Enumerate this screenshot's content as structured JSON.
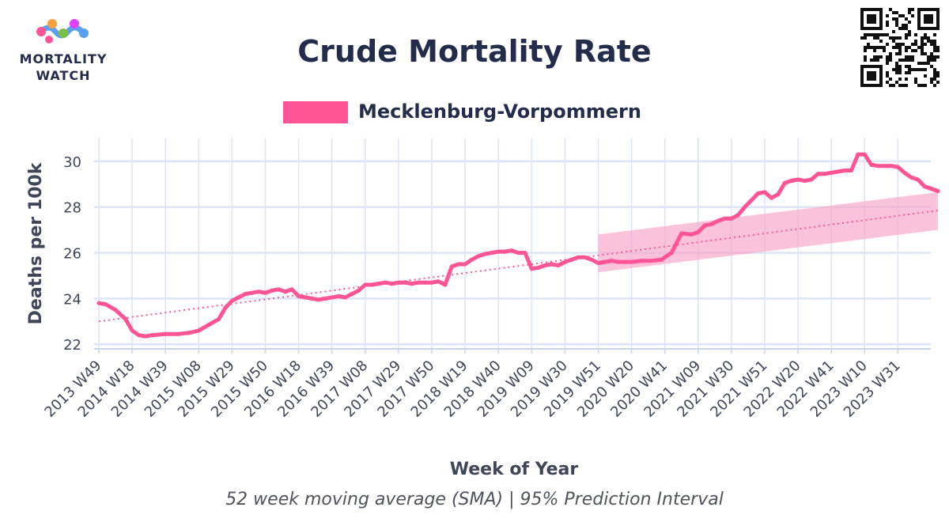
{
  "logo": {
    "line1": "MORTALITY",
    "line2": "WATCH"
  },
  "colors": {
    "series": "#ff5596",
    "band": "#f9a3c6",
    "grid": "#dde4f5",
    "title": "#232d4b"
  },
  "qr_icon": "qr-code-icon",
  "chart_data": {
    "type": "line",
    "title": "Crude Mortality Rate",
    "xlabel": "Week of Year",
    "ylabel": "Deaths per 100k",
    "caption": "52 week moving average (SMA) | 95% Prediction Interval",
    "ylim": [
      21.8,
      31.0
    ],
    "yticks": [
      22,
      24,
      26,
      28,
      30
    ],
    "grid": true,
    "legend_position": "top-center",
    "x_categories": [
      "2013 W49",
      "2014 W18",
      "2014 W39",
      "2015 W08",
      "2015 W29",
      "2015 W50",
      "2016 W18",
      "2016 W39",
      "2017 W08",
      "2017 W29",
      "2017 W50",
      "2018 W19",
      "2018 W40",
      "2019 W09",
      "2019 W30",
      "2019 W51",
      "2020 W20",
      "2020 W41",
      "2021 W09",
      "2021 W30",
      "2021 W51",
      "2022 W20",
      "2022 W41",
      "2023 W10",
      "2023 W31"
    ],
    "series": [
      {
        "name": "Mecklenburg-Vorpommern",
        "color": "#ff5596",
        "x": [
          0,
          0.2,
          0.5,
          0.8,
          1.0,
          1.2,
          1.4,
          1.6,
          2.0,
          2.4,
          2.7,
          3.0,
          3.3,
          3.6,
          3.8,
          4.0,
          4.2,
          4.4,
          4.6,
          4.8,
          5.0,
          5.2,
          5.4,
          5.6,
          5.8,
          6.0,
          6.2,
          6.4,
          6.6,
          6.8,
          7.0,
          7.2,
          7.4,
          7.6,
          7.8,
          8.0,
          8.2,
          8.4,
          8.6,
          8.8,
          9.0,
          9.2,
          9.4,
          9.6,
          9.8,
          10.0,
          10.2,
          10.4,
          10.6,
          10.8,
          11.0,
          11.2,
          11.4,
          11.6,
          11.8,
          12.0,
          12.2,
          12.4,
          12.6,
          12.8,
          13.0,
          13.2,
          13.4,
          13.6,
          13.8,
          14.0,
          14.2,
          14.4,
          14.6,
          14.8,
          15.0,
          15.2,
          15.4,
          15.6,
          15.8,
          16.0,
          16.3,
          16.6,
          16.9,
          17.2,
          17.5,
          17.8,
          18.0,
          18.2,
          18.4,
          18.6,
          18.8,
          19.0,
          19.2,
          19.4,
          19.6,
          19.8,
          20.0,
          20.2,
          20.4,
          20.6,
          20.8,
          21.0,
          21.2,
          21.4,
          21.6,
          21.8,
          22.0,
          22.2,
          22.4,
          22.6,
          22.8,
          23.0,
          23.2,
          23.4,
          23.6,
          23.8,
          24.0,
          24.2,
          24.4,
          24.6,
          24.8,
          25.0,
          25.2
        ],
        "values": [
          23.8,
          23.75,
          23.5,
          23.1,
          22.6,
          22.4,
          22.35,
          22.4,
          22.45,
          22.45,
          22.5,
          22.6,
          22.85,
          23.1,
          23.6,
          23.9,
          24.05,
          24.2,
          24.25,
          24.3,
          24.25,
          24.35,
          24.4,
          24.3,
          24.4,
          24.1,
          24.05,
          24.0,
          23.95,
          24.0,
          24.05,
          24.1,
          24.05,
          24.2,
          24.35,
          24.6,
          24.6,
          24.65,
          24.7,
          24.65,
          24.7,
          24.7,
          24.65,
          24.7,
          24.7,
          24.7,
          24.75,
          24.6,
          25.4,
          25.5,
          25.5,
          25.7,
          25.85,
          25.95,
          26.0,
          26.05,
          26.05,
          26.1,
          26.0,
          26.0,
          25.3,
          25.35,
          25.45,
          25.5,
          25.45,
          25.6,
          25.7,
          25.8,
          25.8,
          25.7,
          25.55,
          25.6,
          25.65,
          25.6,
          25.6,
          25.6,
          25.65,
          25.65,
          25.7,
          26.0,
          26.85,
          26.8,
          26.9,
          27.2,
          27.25,
          27.4,
          27.5,
          27.5,
          27.65,
          28.0,
          28.3,
          28.6,
          28.65,
          28.4,
          28.55,
          29.05,
          29.15,
          29.2,
          29.15,
          29.2,
          29.45,
          29.45,
          29.5,
          29.55,
          29.6,
          29.6,
          30.3,
          30.3,
          29.85,
          29.8,
          29.8,
          29.8,
          29.75,
          29.5,
          29.3,
          29.2,
          28.9,
          28.8,
          28.7
        ]
      },
      {
        "name": "",
        "style": "dotted-trend",
        "color": "#ff5596",
        "x": [
          0,
          25.2
        ],
        "values": [
          23.0,
          27.85
        ]
      }
    ],
    "prediction_interval": {
      "x": [
        15.0,
        25.2
      ],
      "lower": [
        25.15,
        27.0
      ],
      "upper": [
        26.8,
        28.65
      ]
    }
  }
}
